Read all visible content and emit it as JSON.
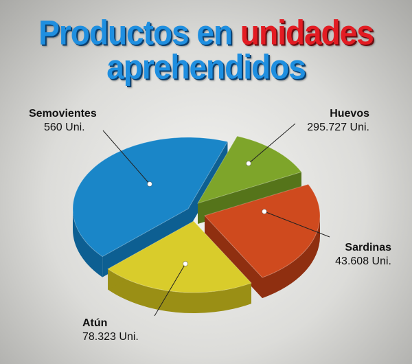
{
  "title": {
    "line1_a": "Productos en ",
    "line1_b": "unidades",
    "line2": "aprehendidos"
  },
  "colors": {
    "title_blue": "#1f8fe0",
    "title_red": "#e31c23"
  },
  "chart_data": {
    "type": "pie",
    "title": "Productos en unidades aprehendidos",
    "slices": [
      {
        "name": "Semovientes",
        "value_label": "560 Uni.",
        "value": 560,
        "color": "#1a86c8",
        "side": "#0d5f92"
      },
      {
        "name": "Huevos",
        "value_label": "295.727 Uni.",
        "value": 295727,
        "color": "#7ea52a",
        "side": "#55741a"
      },
      {
        "name": "Sardinas",
        "value_label": "43.608 Uni.",
        "value": 43608,
        "color": "#cf4a1e",
        "side": "#8f2f10"
      },
      {
        "name": "Atún",
        "value_label": "78.323 Uni.",
        "value": 78323,
        "color": "#d9cc2b",
        "side": "#9a8f15"
      }
    ],
    "legend": "callout-labels"
  }
}
